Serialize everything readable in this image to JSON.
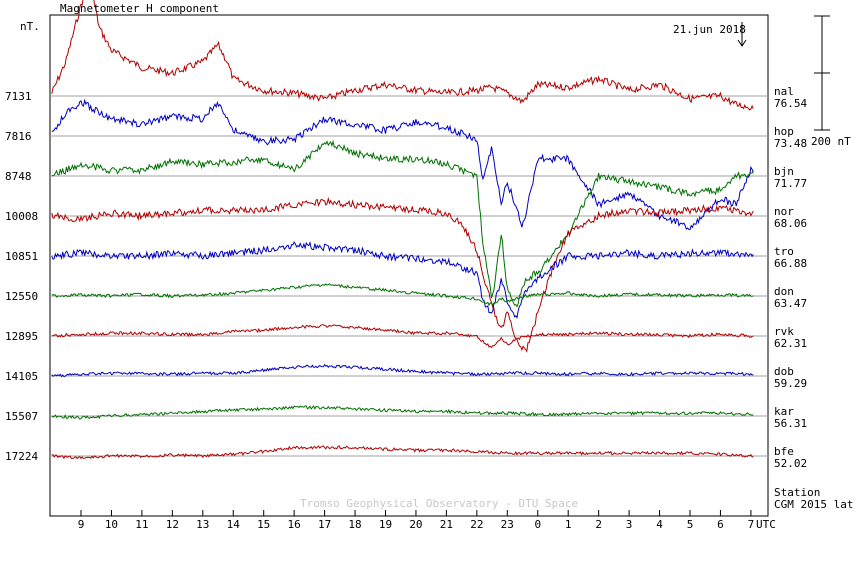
{
  "chart_data": {
    "type": "line",
    "title": "Magnetometer H component",
    "unit_label": "nT.",
    "date_label": "21.jun 2018",
    "scale_label": "200 nT",
    "footer_text": "Tromso Geophysical Observatory - DTU Space",
    "station_header": "Station",
    "lat_header": "CGM 2015 lat",
    "xlabel": "UTC",
    "x_ticks": [
      "9",
      "10",
      "11",
      "12",
      "13",
      "14",
      "15",
      "16",
      "17",
      "18",
      "19",
      "20",
      "21",
      "22",
      "23",
      "0",
      "1",
      "2",
      "3",
      "4",
      "5",
      "6",
      "7"
    ],
    "x_range_hours_from_0800": [
      0,
      23.66
    ],
    "scale_bar_nT": 200,
    "series_colors": [
      "#b00000",
      "#0000c0",
      "#007000"
    ],
    "stations": [
      {
        "code": "nal",
        "lat": "76.54",
        "baseline": "7131",
        "color": "#b00000"
      },
      {
        "code": "hop",
        "lat": "73.48",
        "baseline": "7816",
        "color": "#0000c0"
      },
      {
        "code": "bjn",
        "lat": "71.77",
        "baseline": "8748",
        "color": "#007000"
      },
      {
        "code": "nor",
        "lat": "68.06",
        "baseline": "10008",
        "color": "#b00000"
      },
      {
        "code": "tro",
        "lat": "66.88",
        "baseline": "10851",
        "color": "#0000c0"
      },
      {
        "code": "don",
        "lat": "63.47",
        "baseline": "12550",
        "color": "#007000"
      },
      {
        "code": "rvk",
        "lat": "62.31",
        "baseline": "12895",
        "color": "#b00000"
      },
      {
        "code": "dob",
        "lat": "59.29",
        "baseline": "14105",
        "color": "#0000c0"
      },
      {
        "code": "kar",
        "lat": "56.31",
        "baseline": "15507",
        "color": "#007000"
      },
      {
        "code": "bfe",
        "lat": "52.02",
        "baseline": "17224",
        "color": "#b00000"
      }
    ],
    "series": [
      {
        "name": "nal",
        "x": [
          0,
          0.5,
          1,
          1.3,
          1.6,
          2,
          3,
          4,
          5,
          5.5,
          5.8,
          6,
          6.5,
          7,
          8,
          9,
          10,
          11,
          12,
          13,
          14,
          14.5,
          15,
          15.5,
          16,
          17,
          18,
          19,
          20,
          21,
          22,
          22.5,
          23,
          23.5,
          23.66
        ],
        "y": [
          0,
          60,
          160,
          200,
          120,
          80,
          50,
          40,
          60,
          90,
          60,
          30,
          20,
          10,
          5,
          -5,
          10,
          20,
          10,
          5,
          10,
          15,
          5,
          -10,
          20,
          15,
          30,
          10,
          20,
          -5,
          0,
          -15,
          -20,
          -5,
          -10
        ]
      },
      {
        "name": "hop",
        "x": [
          0,
          0.5,
          1,
          2,
          3,
          4,
          5,
          5.5,
          6,
          7,
          8,
          9,
          10,
          11,
          12,
          13,
          14,
          14.2,
          14.5,
          14.8,
          15,
          15.5,
          16,
          17,
          18,
          19,
          20,
          21,
          22,
          22.5,
          23,
          23.5,
          23.66
        ],
        "y": [
          0,
          40,
          60,
          30,
          20,
          35,
          30,
          60,
          10,
          -10,
          -5,
          30,
          20,
          10,
          25,
          15,
          -5,
          -80,
          -20,
          -120,
          -80,
          -160,
          -40,
          -40,
          -120,
          -100,
          -140,
          -160,
          -110,
          -120,
          -60,
          -50,
          -40
        ]
      },
      {
        "name": "bjn",
        "x": [
          0,
          1,
          2,
          3,
          4,
          5,
          6,
          7,
          8,
          9,
          10,
          11,
          12,
          13,
          14,
          14.2,
          14.5,
          14.8,
          15,
          15.3,
          15.6,
          16,
          17,
          18,
          18.5,
          19,
          20,
          21,
          22,
          22.5,
          23,
          23.66
        ],
        "y": [
          0,
          20,
          10,
          10,
          25,
          20,
          25,
          30,
          10,
          60,
          40,
          30,
          30,
          20,
          0,
          -120,
          -220,
          -100,
          -200,
          -230,
          -180,
          -170,
          -100,
          0,
          -5,
          -10,
          -20,
          -30,
          -25,
          0,
          5,
          0
        ]
      },
      {
        "name": "nor",
        "x": [
          0,
          1,
          2,
          3,
          4,
          5,
          6,
          7,
          8,
          9,
          10,
          11,
          12,
          13,
          13.5,
          14,
          14.2,
          14.5,
          14.8,
          15,
          15.3,
          15.6,
          16,
          16.5,
          17,
          18,
          19,
          20,
          21,
          22,
          23,
          23.66
        ],
        "y": [
          0,
          -5,
          5,
          0,
          5,
          10,
          10,
          10,
          20,
          25,
          20,
          15,
          10,
          5,
          -15,
          -60,
          -100,
          -160,
          -200,
          -170,
          -220,
          -240,
          -170,
          -90,
          -30,
          0,
          10,
          5,
          10,
          15,
          5,
          0
        ]
      },
      {
        "name": "tro",
        "x": [
          0,
          1,
          2,
          3,
          4,
          5,
          6,
          7,
          8,
          9,
          10,
          11,
          12,
          13,
          13.5,
          14,
          14.2,
          14.5,
          14.8,
          15,
          15.3,
          15.6,
          16,
          16.5,
          17,
          18,
          19,
          20,
          21,
          22,
          23,
          23.66
        ],
        "y": [
          0,
          5,
          0,
          0,
          5,
          0,
          5,
          10,
          20,
          15,
          10,
          0,
          -5,
          -10,
          -20,
          -30,
          -80,
          -100,
          -40,
          -80,
          -110,
          -60,
          -40,
          -20,
          0,
          0,
          5,
          0,
          5,
          5,
          0,
          0
        ]
      },
      {
        "name": "don",
        "x": [
          0,
          1,
          2,
          3,
          4,
          5,
          6,
          7,
          8,
          9,
          10,
          11,
          12,
          13,
          14,
          14.2,
          14.5,
          14.8,
          15,
          15.3,
          15.6,
          16,
          17,
          18,
          19,
          20,
          21,
          22,
          23,
          23.66
        ],
        "y": [
          0,
          2,
          0,
          3,
          0,
          2,
          5,
          10,
          15,
          20,
          15,
          10,
          5,
          0,
          -5,
          -10,
          -15,
          -5,
          -10,
          -5,
          0,
          2,
          5,
          0,
          3,
          2,
          0,
          2,
          0,
          -3
        ]
      },
      {
        "name": "rvk",
        "x": [
          0,
          1,
          2,
          3,
          4,
          5,
          6,
          7,
          8,
          9,
          10,
          11,
          12,
          13,
          14,
          14.2,
          14.5,
          14.8,
          15,
          15.3,
          15.6,
          16,
          17,
          18,
          19,
          20,
          21,
          22,
          23,
          23.66
        ],
        "y": [
          0,
          3,
          5,
          5,
          3,
          2,
          8,
          10,
          15,
          18,
          15,
          10,
          5,
          5,
          0,
          -10,
          -20,
          -5,
          -15,
          -5,
          0,
          2,
          3,
          5,
          3,
          2,
          0,
          3,
          0,
          -2
        ]
      },
      {
        "name": "dob",
        "x": [
          0,
          1,
          2,
          3,
          4,
          5,
          6,
          7,
          8,
          9,
          10,
          11,
          12,
          13,
          14,
          15,
          16,
          17,
          18,
          19,
          20,
          21,
          22,
          23,
          23.66
        ],
        "y": [
          0,
          3,
          5,
          5,
          3,
          5,
          5,
          10,
          15,
          18,
          15,
          12,
          8,
          5,
          3,
          5,
          5,
          3,
          5,
          3,
          5,
          5,
          5,
          3,
          0
        ]
      },
      {
        "name": "kar",
        "x": [
          0,
          1,
          2,
          3,
          4,
          5,
          6,
          7,
          8,
          9,
          10,
          11,
          12,
          13,
          14,
          15,
          16,
          17,
          18,
          19,
          20,
          21,
          22,
          23,
          23.66
        ],
        "y": [
          0,
          -3,
          0,
          3,
          5,
          8,
          10,
          12,
          15,
          15,
          12,
          10,
          8,
          8,
          5,
          5,
          3,
          3,
          5,
          5,
          5,
          5,
          5,
          3,
          -1
        ]
      },
      {
        "name": "bfe",
        "x": [
          0,
          1,
          2,
          3,
          4,
          5,
          6,
          7,
          8,
          9,
          10,
          11,
          12,
          13,
          14,
          15,
          16,
          17,
          18,
          19,
          20,
          21,
          22,
          23,
          23.66
        ],
        "y": [
          0,
          -3,
          0,
          0,
          2,
          0,
          3,
          8,
          15,
          15,
          15,
          12,
          10,
          10,
          8,
          5,
          5,
          5,
          5,
          5,
          5,
          5,
          3,
          0,
          -4
        ]
      }
    ]
  }
}
